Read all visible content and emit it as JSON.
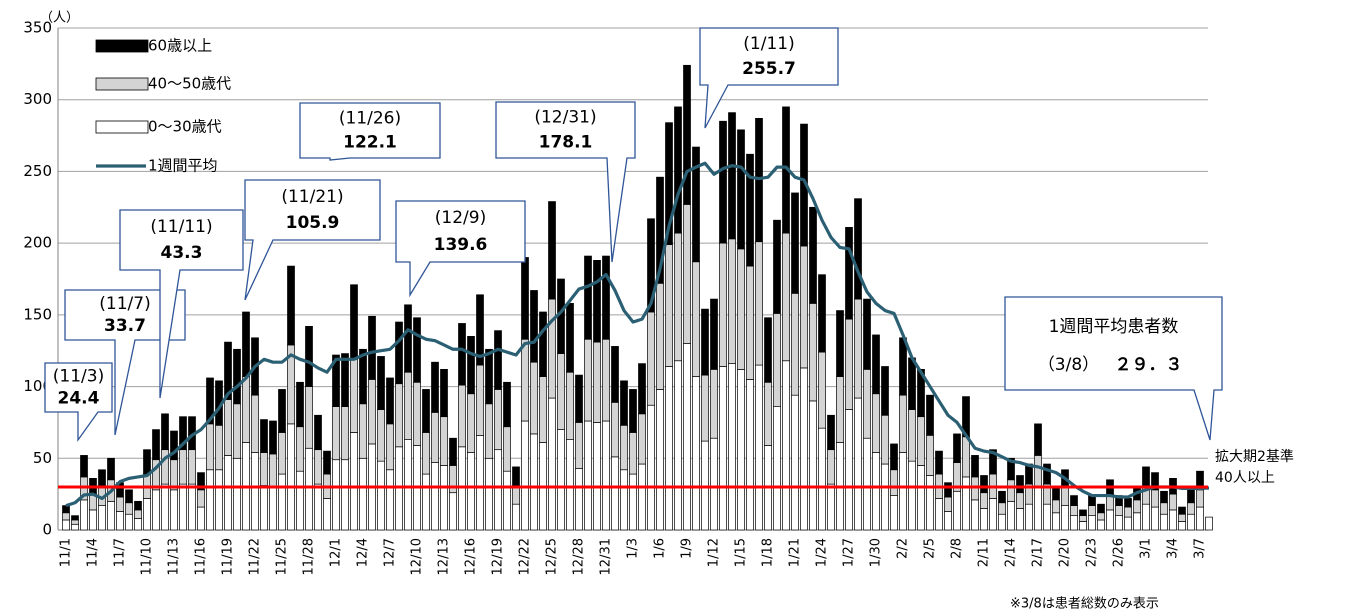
{
  "chart_data": {
    "type": "stacked-bar-line",
    "y_unit": "（人）",
    "footnote": "※3/8は患者総数のみ表示",
    "ylim": [
      0,
      350
    ],
    "yticks": [
      0,
      50,
      100,
      150,
      200,
      250,
      300,
      350
    ],
    "grid": true,
    "categories": [
      "11/1",
      null,
      null,
      "11/4",
      null,
      null,
      "11/7",
      null,
      null,
      "11/10",
      null,
      null,
      "11/13",
      null,
      null,
      "11/16",
      null,
      null,
      "11/19",
      null,
      null,
      "11/22",
      null,
      null,
      "11/25",
      null,
      null,
      "11/28",
      null,
      null,
      "12/1",
      null,
      null,
      "12/4",
      null,
      null,
      "12/7",
      null,
      null,
      "12/10",
      null,
      null,
      "12/13",
      null,
      null,
      "12/16",
      null,
      null,
      "12/19",
      null,
      null,
      "12/22",
      null,
      null,
      "12/25",
      null,
      null,
      "12/28",
      null,
      null,
      "12/31",
      null,
      null,
      "1/3",
      null,
      null,
      "1/6",
      null,
      null,
      "1/9",
      null,
      null,
      "1/12",
      null,
      null,
      "1/15",
      null,
      null,
      "1/18",
      null,
      null,
      "1/21",
      null,
      null,
      "1/24",
      null,
      null,
      "1/27",
      null,
      null,
      "1/30",
      null,
      null,
      "2/2",
      null,
      null,
      "2/5",
      null,
      null,
      "2/8",
      null,
      null,
      "2/11",
      null,
      null,
      "2/14",
      null,
      null,
      "2/17",
      null,
      null,
      "2/20",
      null,
      null,
      "2/23",
      null,
      null,
      "2/26",
      null,
      null,
      "3/1",
      null,
      null,
      "3/4",
      null,
      null,
      "3/7",
      null
    ],
    "series": [
      {
        "name": "60歳以上",
        "type": "bar",
        "color": "#000000",
        "values": [
          5,
          3,
          15,
          11,
          12,
          15,
          10,
          9,
          6,
          17,
          21,
          25,
          20,
          23,
          23,
          12,
          32,
          31,
          40,
          38,
          45,
          40,
          23,
          23,
          30,
          55,
          31,
          42,
          24,
          16,
          36,
          37,
          52,
          38,
          44,
          37,
          32,
          43,
          47,
          45,
          30,
          35,
          33,
          19,
          43,
          40,
          49,
          38,
          41,
          31,
          13,
          57,
          50,
          45,
          68,
          52,
          48,
          33,
          58,
          57,
          58,
          39,
          31,
          30,
          35,
          65,
          74,
          85,
          88,
          97,
          80,
          46,
          49,
          85,
          88,
          83,
          78,
          86,
          45,
          65,
          88,
          70,
          85,
          67,
          54,
          24,
          46,
          64,
          70,
          49,
          41,
          34,
          18,
          40,
          36,
          33,
          28,
          16,
          10,
          20,
          28,
          15,
          12,
          17,
          8,
          15,
          12,
          14,
          22,
          14,
          9,
          12,
          7,
          4,
          7,
          6,
          10,
          7,
          6,
          9,
          13,
          12,
          8,
          11,
          5,
          9,
          13,
          null
        ]
      },
      {
        "name": "40～50歳代",
        "type": "bar",
        "color": "#d4d4d4",
        "values": [
          5,
          3,
          16,
          11,
          13,
          15,
          10,
          8,
          6,
          17,
          21,
          24,
          21,
          24,
          24,
          12,
          32,
          31,
          39,
          38,
          46,
          40,
          23,
          23,
          29,
          55,
          31,
          43,
          24,
          17,
          37,
          37,
          51,
          38,
          45,
          36,
          32,
          44,
          47,
          44,
          29,
          35,
          34,
          19,
          43,
          41,
          49,
          38,
          42,
          31,
          13,
          57,
          50,
          46,
          69,
          53,
          47,
          32,
          57,
          56,
          57,
          38,
          31,
          29,
          35,
          65,
          74,
          85,
          89,
          97,
          80,
          46,
          48,
          86,
          87,
          84,
          79,
          86,
          44,
          65,
          89,
          71,
          85,
          68,
          53,
          24,
          46,
          63,
          69,
          48,
          41,
          34,
          18,
          40,
          36,
          34,
          28,
          17,
          10,
          20,
          28,
          16,
          11,
          17,
          8,
          15,
          11,
          14,
          22,
          14,
          9,
          13,
          7,
          4,
          7,
          5,
          11,
          7,
          7,
          9,
          13,
          12,
          8,
          11,
          5,
          8,
          12,
          null
        ]
      },
      {
        "name": "0～30歳代",
        "type": "bar",
        "color": "#ffffff",
        "values": [
          7,
          4,
          21,
          14,
          17,
          20,
          13,
          11,
          8,
          22,
          28,
          32,
          28,
          32,
          32,
          16,
          42,
          42,
          52,
          50,
          61,
          54,
          31,
          30,
          39,
          74,
          41,
          57,
          32,
          22,
          49,
          49,
          68,
          50,
          60,
          48,
          42,
          58,
          63,
          59,
          39,
          47,
          45,
          26,
          58,
          54,
          66,
          50,
          56,
          41,
          18,
          76,
          67,
          61,
          92,
          70,
          63,
          43,
          76,
          75,
          76,
          51,
          42,
          39,
          46,
          87,
          98,
          114,
          118,
          130,
          107,
          62,
          64,
          114,
          116,
          112,
          105,
          115,
          59,
          86,
          118,
          94,
          113,
          90,
          71,
          32,
          61,
          84,
          92,
          64,
          54,
          46,
          24,
          54,
          48,
          45,
          38,
          22,
          13,
          27,
          37,
          21,
          15,
          22,
          11,
          20,
          15,
          18,
          30,
          18,
          12,
          17,
          10,
          6,
          10,
          7,
          14,
          10,
          9,
          12,
          18,
          16,
          11,
          14,
          6,
          11,
          16,
          9
        ]
      },
      {
        "name": "1週間平均",
        "type": "line",
        "color": "#2b5f73",
        "values": [
          17,
          19,
          24.4,
          25,
          22,
          27,
          33.7,
          36,
          37,
          38,
          43.3,
          50,
          54,
          60,
          66,
          70,
          77,
          85,
          95,
          100,
          105.9,
          114,
          119,
          117,
          117,
          122.1,
          119,
          117,
          113,
          110,
          119,
          119,
          119,
          122,
          124,
          125,
          126,
          132,
          139.6,
          136,
          133,
          132,
          129,
          126,
          126,
          123,
          121,
          123,
          126,
          124,
          122,
          130,
          131,
          139,
          146,
          152,
          160,
          168,
          170,
          173,
          178.1,
          167,
          153,
          145,
          147,
          158,
          182,
          212,
          234,
          250,
          253,
          255.7,
          248,
          252,
          254,
          253,
          246,
          245,
          246,
          253,
          253,
          246,
          244,
          231,
          216,
          204,
          197,
          196,
          180,
          166,
          158,
          153,
          151,
          136,
          120,
          110,
          100,
          90,
          80,
          75,
          66,
          57,
          55,
          54,
          51,
          48,
          47,
          45,
          44,
          42,
          40,
          36,
          31,
          27,
          24,
          24,
          24,
          23,
          23,
          26,
          28,
          30,
          30,
          30,
          29,
          29,
          29,
          29.3
        ]
      }
    ],
    "reference_line": {
      "value": 30,
      "color": "#ff0000",
      "labels": [
        "拡大期2基準",
        "40人以上"
      ]
    },
    "annotations": [
      {
        "date": "(11/3)",
        "value": "24.4"
      },
      {
        "date": "(11/7)",
        "value": "33.7"
      },
      {
        "date": "(11/11)",
        "value": "43.3"
      },
      {
        "date": "(11/21)",
        "value": "105.9"
      },
      {
        "date": "(11/26)",
        "value": "122.1"
      },
      {
        "date": "(12/9)",
        "value": "139.6"
      },
      {
        "date": "(12/31)",
        "value": "178.1"
      },
      {
        "date": "(1/11)",
        "value": "255.7"
      },
      {
        "title": "1週間平均患者数",
        "date": "（3/8）",
        "value": "２９．３"
      }
    ]
  }
}
